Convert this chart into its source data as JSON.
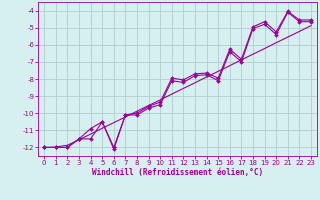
{
  "xlabel": "Windchill (Refroidissement éolien,°C)",
  "x_values": [
    0,
    1,
    2,
    3,
    4,
    5,
    6,
    7,
    8,
    9,
    10,
    11,
    12,
    13,
    14,
    15,
    16,
    17,
    18,
    19,
    20,
    21,
    22,
    23
  ],
  "line1_y": [
    -12,
    -12,
    -12,
    -11.5,
    -11.5,
    -10.5,
    -12,
    -10.1,
    -10.1,
    -9.7,
    -9.5,
    -8.1,
    -8.2,
    -7.8,
    -7.75,
    -8.1,
    -6.4,
    -7.0,
    -5.05,
    -4.8,
    -5.4,
    -4.1,
    -4.65,
    -4.65
  ],
  "line2_y": [
    -12,
    -12,
    -12,
    -11.5,
    -10.9,
    -10.5,
    -12.1,
    -10.1,
    -10.0,
    -9.6,
    -9.35,
    -7.95,
    -8.05,
    -7.7,
    -7.65,
    -7.95,
    -6.25,
    -6.85,
    -4.95,
    -4.65,
    -5.25,
    -4.05,
    -4.55,
    -4.55
  ],
  "line3_y": [
    -12.0,
    -11.98,
    -11.87,
    -11.55,
    -11.22,
    -10.88,
    -10.55,
    -10.22,
    -9.88,
    -9.55,
    -9.22,
    -8.88,
    -8.55,
    -8.22,
    -7.88,
    -7.55,
    -7.22,
    -6.88,
    -6.55,
    -6.22,
    -5.88,
    -5.55,
    -5.22,
    -4.88
  ],
  "line_color": "#990099",
  "background_color": "#d6f0f0",
  "grid_color": "#b0cece",
  "ylim": [
    -12.5,
    -3.5
  ],
  "xlim": [
    -0.5,
    23.5
  ],
  "yticks": [
    -12,
    -11,
    -10,
    -9,
    -8,
    -7,
    -6,
    -5,
    -4
  ],
  "xticks": [
    0,
    1,
    2,
    3,
    4,
    5,
    6,
    7,
    8,
    9,
    10,
    11,
    12,
    13,
    14,
    15,
    16,
    17,
    18,
    19,
    20,
    21,
    22,
    23
  ],
  "marker": "D",
  "markersize": 2.0,
  "linewidth": 0.8,
  "tick_fontsize": 5.0,
  "xlabel_fontsize": 5.5
}
